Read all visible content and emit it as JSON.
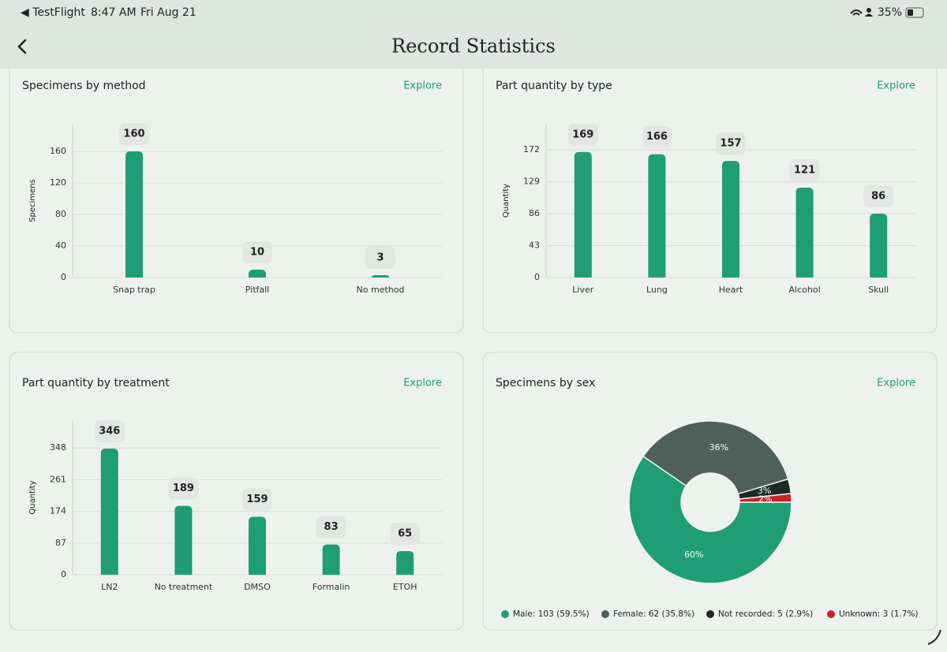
{
  "status_bar": {
    "app": "◀ TestFlight",
    "time": "8:47 AM",
    "date": "Fri Aug 21",
    "battery": "35%"
  },
  "header": {
    "title": "Record Statistics"
  },
  "chart_data": [
    {
      "type": "bar",
      "title": "Specimens by method",
      "link": "Explore",
      "y_label": "Specimens",
      "categories": [
        "Snap trap",
        "Pitfall",
        "No method"
      ],
      "values": [
        160,
        10,
        3
      ],
      "color": "#1f9e75",
      "ylim": [
        0,
        195
      ],
      "yticks": [
        0,
        40,
        80,
        120,
        160
      ],
      "grid": true
    },
    {
      "type": "bar",
      "title": "Part quantity by type",
      "link": "Explore",
      "y_label": "Quantity",
      "categories": [
        "Liver",
        "Lung",
        "Heart",
        "Alcohol",
        "Skull"
      ],
      "values": [
        169,
        166,
        157,
        121,
        86
      ],
      "color": "#1f9e75",
      "ylim": [
        0,
        207
      ],
      "yticks": [
        0,
        43,
        86,
        129,
        172
      ],
      "grid": true
    },
    {
      "type": "bar",
      "title": "Part quantity by treatment",
      "link": "Explore",
      "y_label": "Quantity",
      "categories": [
        "LN2",
        "No treatment",
        "DMSO",
        "Formalin",
        "ETOH"
      ],
      "values": [
        346,
        189,
        159,
        83,
        65
      ],
      "color": "#1f9e75",
      "ylim": [
        0,
        424
      ],
      "yticks": [
        0,
        87,
        174,
        261,
        348
      ],
      "grid": true
    },
    {
      "type": "pie",
      "title": "Specimens by sex",
      "link": "Explore",
      "categories": [
        "Male",
        "Female",
        "Not recorded",
        "Unknown"
      ],
      "values": [
        59.5,
        35.8,
        2.9,
        1.7
      ],
      "value_labels": [
        "60%",
        "36%",
        "3%",
        "2%"
      ],
      "legend_labels": [
        "Male: 103 (59.5%)",
        "Female: 62 (35.8%)",
        "Not recorded: 5 (2.9%)",
        "Unknown: 3 (1.7%)"
      ],
      "colors": [
        "#1f9e75",
        "#4f5f59",
        "#1d2b25",
        "#c4242b"
      ]
    }
  ]
}
